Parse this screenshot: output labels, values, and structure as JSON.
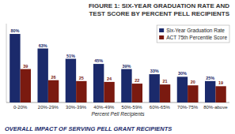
{
  "chart_data": {
    "type": "bar",
    "title": "FIGURE 1: SIX-YEAR GRADUATION RATE AND\nTEST SCORE BY PERCENT PELL RECIPIENTS",
    "xlabel": "Percent Pell Recipients",
    "annotations": [
      "OVERALL IMPACT OF SERVING PELL GRANT RECIPIENTS"
    ],
    "categories": [
      "0-20%",
      "20%-29%",
      "30%-39%",
      "40%-49%",
      "50%-59%",
      "60%-65%",
      "70%-75%",
      "80%-above"
    ],
    "series": [
      {
        "name": "Six-Year Graduation Rate",
        "color": "#1b2a6b",
        "values": [
          80,
          63,
          51,
          45,
          39,
          33,
          30,
          25
        ],
        "value_labels": [
          "80%",
          "63%",
          "51%",
          "45%",
          "39%",
          "33%",
          "30%",
          "25%"
        ]
      },
      {
        "name": "ACT 75th Percentile Score",
        "color": "#7a1a10",
        "values": [
          39,
          26,
          25,
          24,
          22,
          21,
          20,
          19
        ]
      }
    ],
    "ylim": [
      0,
      92
    ],
    "yticks": [],
    "tick_labels": "x",
    "grid": false,
    "legend": "upper right",
    "data_labels": true
  }
}
